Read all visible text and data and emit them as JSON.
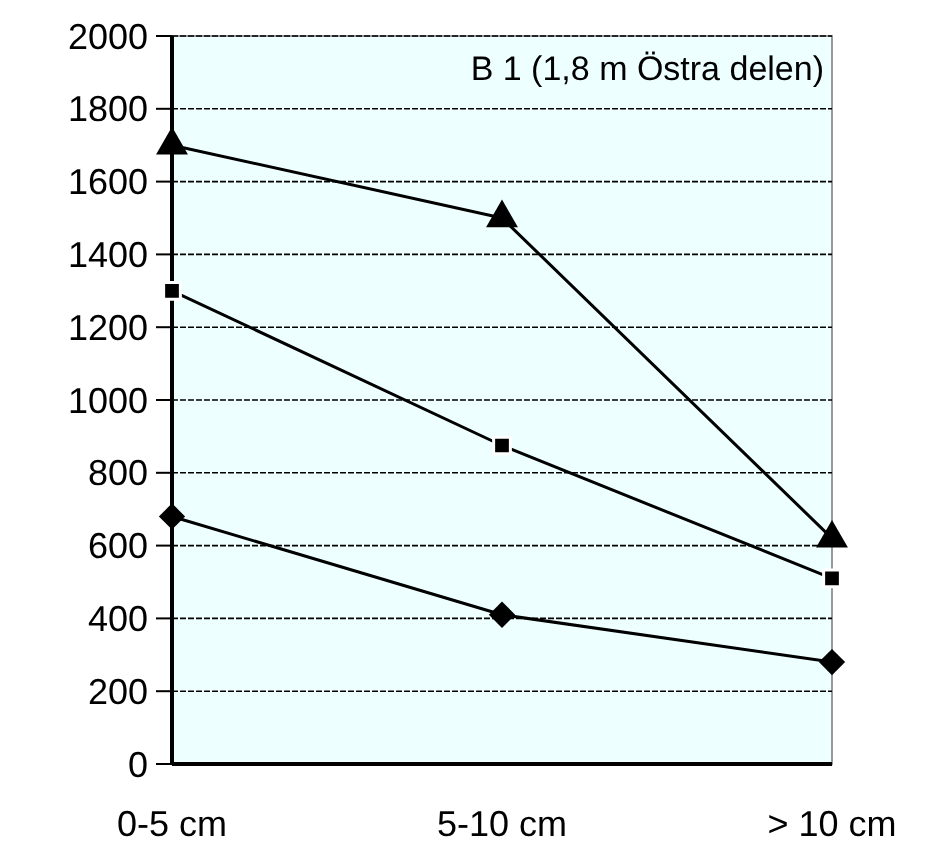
{
  "chart_data": {
    "type": "line",
    "title": "B 1 (1,8 m Östra delen)",
    "categories": [
      "0-5 cm",
      "5-10 cm",
      "> 10 cm"
    ],
    "series": [
      {
        "color": "#000000",
        "marker": "triangle",
        "values": [
          1700,
          1500,
          620
        ]
      },
      {
        "color": "#000000",
        "marker": "square",
        "values": [
          1300,
          875,
          510
        ]
      },
      {
        "color": "#000000",
        "marker": "diamond",
        "values": [
          680,
          410,
          280
        ]
      }
    ],
    "ylim": [
      0,
      2000
    ],
    "yticks": [
      0,
      200,
      400,
      600,
      800,
      1000,
      1200,
      1400,
      1600,
      1800,
      2000
    ],
    "grid": "y",
    "line_style": "solid"
  }
}
